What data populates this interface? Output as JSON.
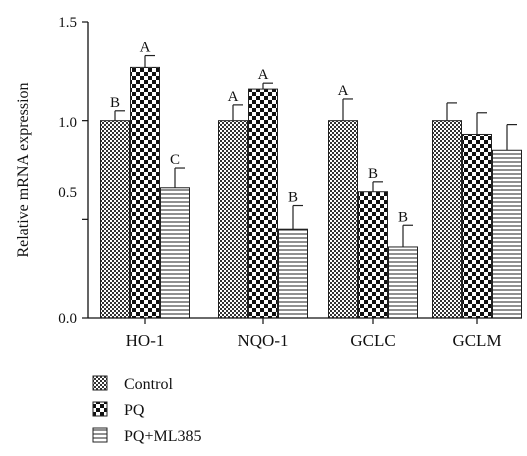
{
  "chart_data": {
    "type": "bar",
    "ylabel": "Relative mRNA expression",
    "ylim": [
      0,
      1.5
    ],
    "yticks": [
      "0.0",
      "0.5",
      "1.0",
      "1.5"
    ],
    "categories": [
      "HO-1",
      "NQO-1",
      "GCLC",
      "GCLM"
    ],
    "series": [
      {
        "name": "Control",
        "values": [
          1.0,
          1.0,
          1.0,
          1.0
        ],
        "errors": [
          0.05,
          0.08,
          0.11,
          0.09
        ],
        "labels": [
          "B",
          "A",
          "A",
          ""
        ],
        "pattern": "fine-checker"
      },
      {
        "name": "PQ",
        "values": [
          1.27,
          1.16,
          0.64,
          0.93
        ],
        "errors": [
          0.06,
          0.03,
          0.05,
          0.11
        ],
        "labels": [
          "A",
          "A",
          "B",
          ""
        ],
        "pattern": "coarse-checker"
      },
      {
        "name": "PQ+ML385",
        "values": [
          0.66,
          0.45,
          0.36,
          0.85
        ],
        "errors": [
          0.1,
          0.12,
          0.11,
          0.13
        ],
        "labels": [
          "C",
          "B",
          "B",
          ""
        ],
        "pattern": "horizontal-lines"
      }
    ],
    "legend_position": "bottom-left",
    "grid": false
  }
}
